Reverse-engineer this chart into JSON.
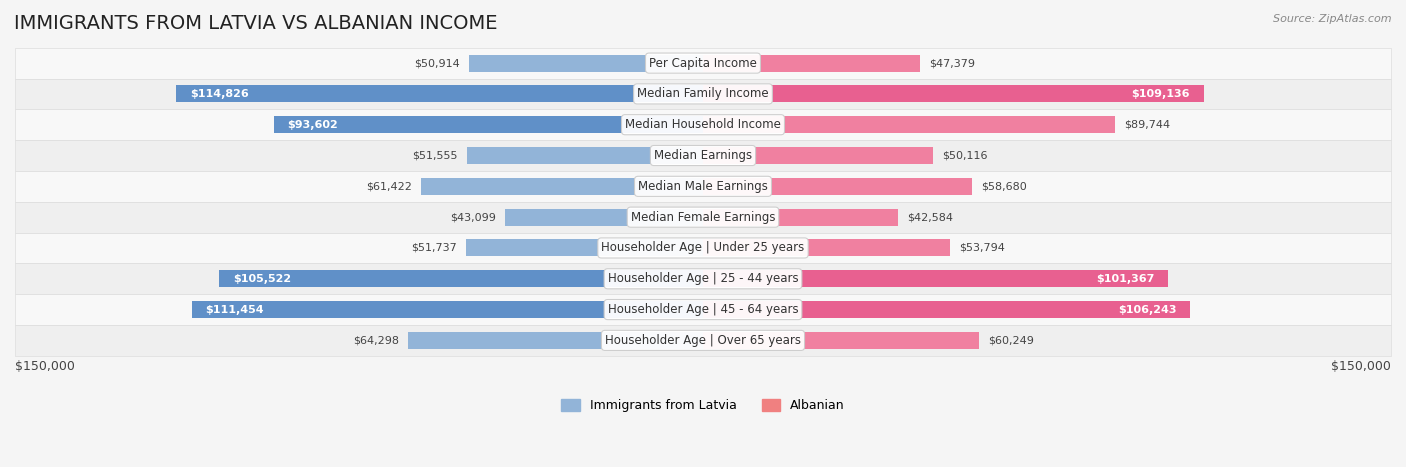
{
  "title": "IMMIGRANTS FROM LATVIA VS ALBANIAN INCOME",
  "source": "Source: ZipAtlas.com",
  "categories": [
    "Per Capita Income",
    "Median Family Income",
    "Median Household Income",
    "Median Earnings",
    "Median Male Earnings",
    "Median Female Earnings",
    "Householder Age | Under 25 years",
    "Householder Age | 25 - 44 years",
    "Householder Age | 45 - 64 years",
    "Householder Age | Over 65 years"
  ],
  "latvia_values": [
    50914,
    114826,
    93602,
    51555,
    61422,
    43099,
    51737,
    105522,
    111454,
    64298
  ],
  "albanian_values": [
    47379,
    109136,
    89744,
    50116,
    58680,
    42584,
    53794,
    101367,
    106243,
    60249
  ],
  "latvia_color": "#92b4d8",
  "albanian_color": "#f080a0",
  "latvia_label_color": "#4a6fa5",
  "albanian_label_color": "#c05070",
  "max_value": 150000,
  "background_color": "#f5f5f5",
  "row_bg_color": "#ffffff",
  "row_alt_bg_color": "#f0f0f0",
  "title_fontsize": 14,
  "label_fontsize": 8.5,
  "value_fontsize": 8,
  "legend_latvia_color": "#92b4d8",
  "legend_albanian_color": "#f08080"
}
